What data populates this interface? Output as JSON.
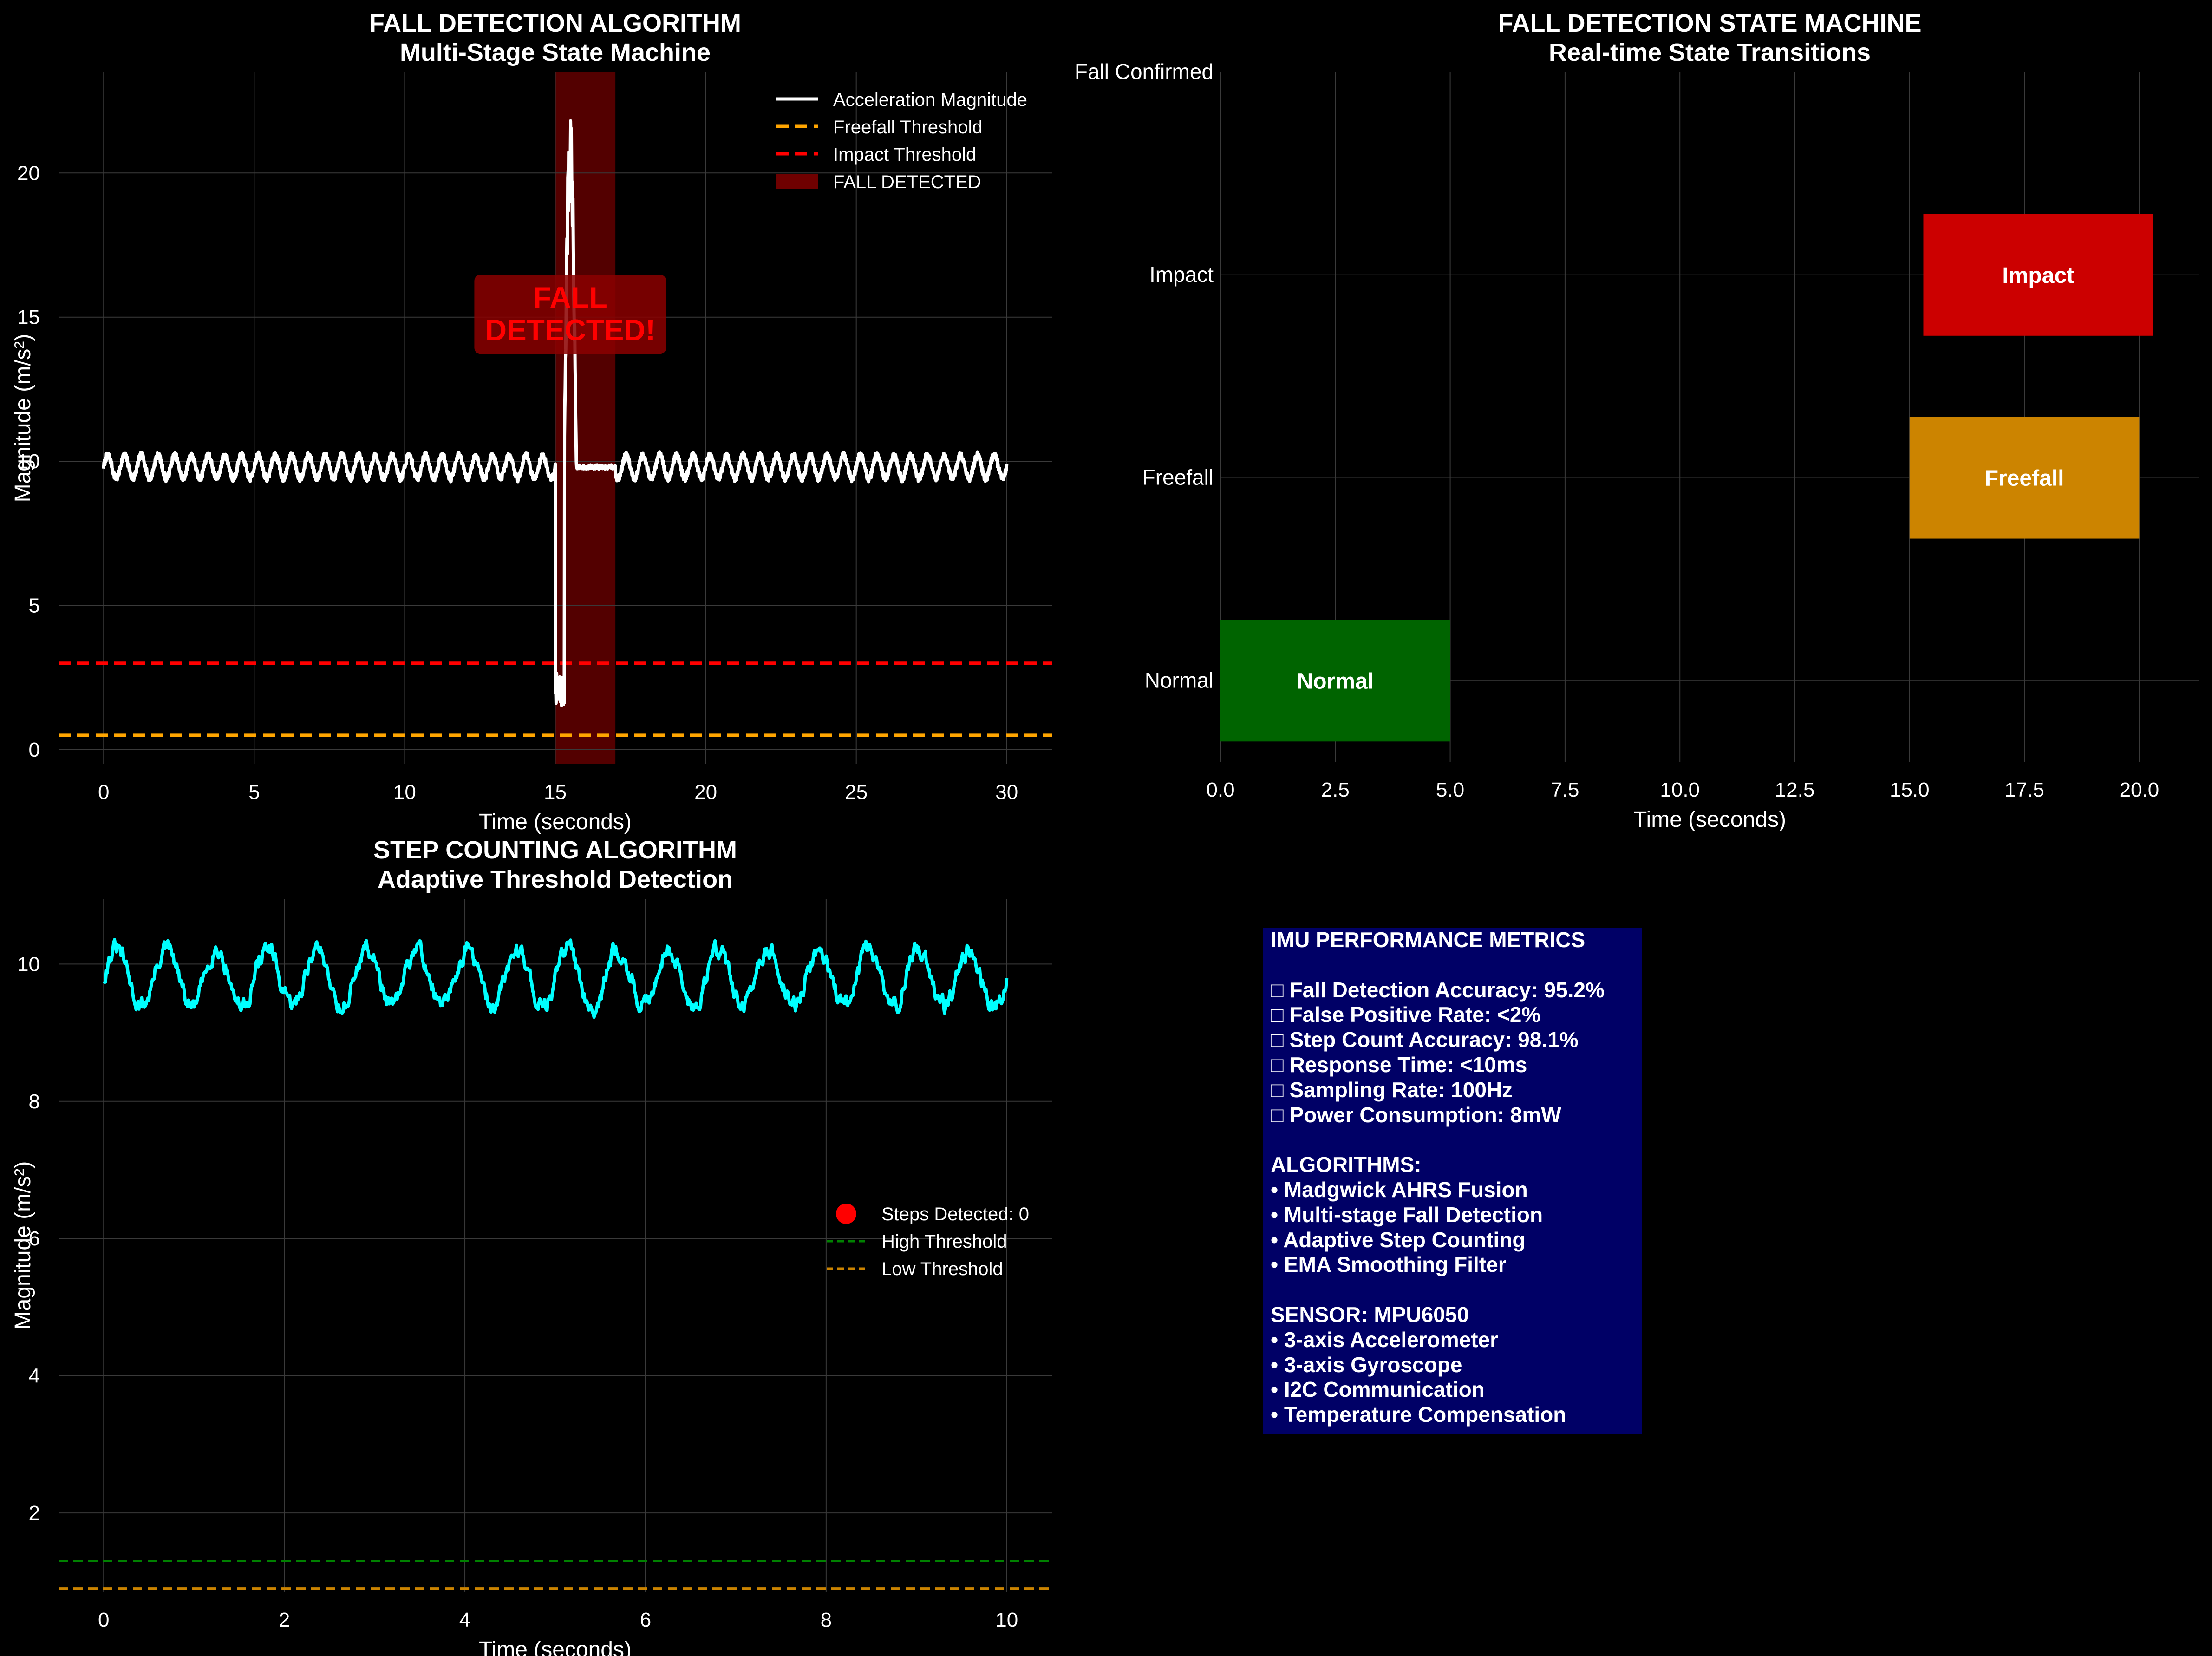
{
  "colors": {
    "background": "#000000",
    "text": "#ffffff",
    "grid": "#3a3a3a",
    "accel_line": "#ffffff",
    "freefall_threshold": "#ffa500",
    "impact_threshold": "#ff0000",
    "fall_region": "#8b0000",
    "fall_text": "#ff0000",
    "fall_box": "#8b0000",
    "state_normal": "#006400",
    "state_freefall": "#cc8400",
    "state_impact": "#cc0000",
    "step_line": "#00ffff",
    "steps_marker": "#ff0000",
    "high_threshold": "#008000",
    "low_threshold": "#cc8400",
    "metrics_box": "#000066"
  },
  "chart_data": [
    {
      "id": "fall",
      "type": "line",
      "title": "FALL DETECTION ALGORITHM",
      "subtitle": "Multi-Stage State Machine",
      "xlabel": "Time (seconds)",
      "ylabel": "Magnitude (m/s²)",
      "xlim": [
        -1.5,
        31.5
      ],
      "ylim": [
        -0.5,
        23.5
      ],
      "xticks": [
        0,
        5,
        10,
        15,
        20,
        25,
        30
      ],
      "yticks": [
        0,
        5,
        10,
        15,
        20
      ],
      "grid": true,
      "legend_position": "top-right",
      "series": [
        {
          "name": "Acceleration Magnitude",
          "kind": "signal",
          "baseline": 9.81,
          "amplitude": 0.4,
          "frequency_hz": 1.8,
          "noise": 0.12,
          "x_range": [
            0,
            30
          ]
        },
        {
          "name": "Freefall Threshold",
          "kind": "hline",
          "y": 0.5
        },
        {
          "name": "Impact Threshold",
          "kind": "hline",
          "y": 3.0
        }
      ],
      "fall_event": {
        "label": "FALL DETECTED",
        "shaded_x": [
          15.0,
          17.0
        ],
        "freefall": {
          "start": 15.0,
          "end": 15.3,
          "min": 1.5,
          "max": 2.8
        },
        "impact": {
          "start": 15.3,
          "peak": 22.3,
          "end": 15.7
        },
        "rest": {
          "start": 15.7,
          "end": 17.0,
          "value": 9.8
        }
      },
      "annotation": {
        "text": "FALL\nDETECTED!",
        "x": 15.5,
        "y": 15
      }
    },
    {
      "id": "state",
      "type": "bar",
      "orientation": "horizontal",
      "title": "FALL DETECTION STATE MACHINE",
      "subtitle": "Real-time State Transitions",
      "xlabel": "Time (seconds)",
      "ylabel": "",
      "xlim": [
        0,
        21.3
      ],
      "ylim": [
        -0.4,
        3.0
      ],
      "xticks": [
        0.0,
        2.5,
        5.0,
        7.5,
        10.0,
        12.5,
        15.0,
        17.5,
        20.0
      ],
      "categories": [
        "Normal",
        "Freefall",
        "Impact",
        "Fall Confirmed"
      ],
      "grid": true,
      "bars": [
        {
          "state": "Normal",
          "start": 0.0,
          "end": 5.0
        },
        {
          "state": "Freefall",
          "start": 15.0,
          "end": 20.0
        },
        {
          "state": "Impact",
          "start": 15.3,
          "end": 20.3
        }
      ]
    },
    {
      "id": "steps",
      "type": "line",
      "title": "STEP COUNTING ALGORITHM",
      "subtitle": "Adaptive Threshold Detection",
      "xlabel": "Time (seconds)",
      "ylabel": "Magnitude (m/s²)",
      "xlim": [
        -0.5,
        10.5
      ],
      "ylim": [
        0.85,
        10.95
      ],
      "xticks": [
        0,
        2,
        4,
        6,
        8,
        10
      ],
      "yticks": [
        2,
        4,
        6,
        8,
        10
      ],
      "grid": true,
      "legend_position": "center-right",
      "series": [
        {
          "name": "",
          "kind": "signal",
          "baseline": 9.8,
          "amplitude": 0.42,
          "frequency_hz": 1.8,
          "noise": 0.1,
          "x_range": [
            0,
            10
          ]
        },
        {
          "name": "Steps Detected: 0",
          "kind": "points",
          "points": []
        },
        {
          "name": "High Threshold",
          "kind": "hline",
          "y": 1.3
        },
        {
          "name": "Low Threshold",
          "kind": "hline",
          "y": 0.9
        }
      ]
    }
  ],
  "metrics_panel": {
    "lines": [
      "IMU PERFORMANCE METRICS",
      "",
      "□ Fall Detection Accuracy: 95.2%",
      "□ False Positive Rate: <2%",
      "□ Step Count Accuracy: 98.1%",
      "□ Response Time: <10ms",
      "□ Sampling Rate: 100Hz",
      "□ Power Consumption: 8mW",
      "",
      "ALGORITHMS:",
      "• Madgwick AHRS Fusion",
      "• Multi-stage Fall Detection",
      "• Adaptive Step Counting",
      "• EMA Smoothing Filter",
      "",
      "SENSOR: MPU6050",
      "• 3-axis Accelerometer",
      "• 3-axis Gyroscope",
      "• I2C Communication",
      "• Temperature Compensation"
    ]
  }
}
